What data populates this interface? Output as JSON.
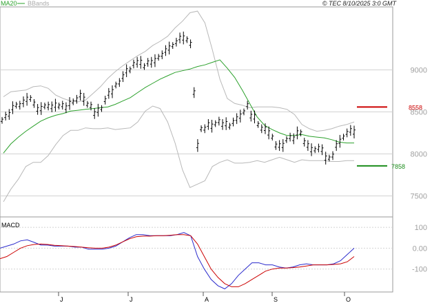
{
  "header": {
    "ma_label": "MA20",
    "bbands_label": "BBands",
    "timestamp": "© TEC 8/10/2025 3:0 GMT"
  },
  "macd_label": "MACD",
  "chart_data": [
    {
      "type": "candlestick",
      "title": "",
      "x_axis_labels": [
        "J",
        "J",
        "A",
        "S",
        "O"
      ],
      "y_ticks": [
        7500,
        8000,
        8500,
        9000
      ],
      "ylim": [
        7250,
        9750
      ],
      "grid": true,
      "colors": {
        "ma20": "#2aa02a",
        "bbands": "#b8b8b8",
        "price": "#000000"
      },
      "levels": [
        {
          "label": "8558",
          "value": 8558,
          "color": "#cc0000"
        },
        {
          "label": "7858",
          "value": 7858,
          "color": "#1a8c1a"
        }
      ],
      "series": [
        {
          "name": "Price",
          "values": [
            8400,
            8450,
            8470,
            8550,
            8580,
            8580,
            8620,
            8650,
            8660,
            8600,
            8530,
            8540,
            8570,
            8570,
            8560,
            8580,
            8570,
            8580,
            8550,
            8600,
            8620,
            8650,
            8700,
            8650,
            8590,
            8570,
            8480,
            8520,
            8540,
            8640,
            8720,
            8740,
            8820,
            8850,
            8920,
            8990,
            9000,
            9070,
            9090,
            9090,
            9040,
            9090,
            9090,
            9110,
            9150,
            9180,
            9230,
            9260,
            9290,
            9330,
            9380,
            9380,
            9360,
            9310,
            8730,
            8100,
            8300,
            8300,
            8350,
            8330,
            8360,
            8390,
            8350,
            8360,
            8330,
            8380,
            8420,
            8450,
            8500,
            8580,
            8450,
            8440,
            8350,
            8300,
            8300,
            8250,
            8200,
            8100,
            8100,
            8100,
            8170,
            8200,
            8180,
            8250,
            8250,
            8140,
            8100,
            8050,
            8050,
            8070,
            8050,
            7950,
            7950,
            7980,
            8100,
            8150,
            8200,
            8250,
            8280,
            8260
          ]
        },
        {
          "name": "MA20",
          "values": [
            8010,
            8120,
            8200,
            8270,
            8330,
            8390,
            8430,
            8460,
            8480,
            8510,
            8520,
            8530,
            8540,
            8550,
            8560,
            8590,
            8630,
            8670,
            8730,
            8790,
            8840,
            8890,
            8930,
            8970,
            8990,
            9010,
            9040,
            9060,
            9090,
            9120,
            9020,
            8910,
            8760,
            8600,
            8440,
            8340,
            8290,
            8250,
            8220,
            8220,
            8230,
            8210,
            8200,
            8190,
            8170,
            8140,
            8130,
            8130
          ]
        },
        {
          "name": "BBands upper",
          "values": [
            8680,
            8740,
            8750,
            8760,
            8800,
            8810,
            8780,
            8700,
            8660,
            8630,
            8620,
            8640,
            8720,
            8800,
            8900,
            8980,
            9050,
            9110,
            9170,
            9220,
            9290,
            9340,
            9400,
            9500,
            9580,
            9680,
            9700,
            9560,
            9240,
            8890,
            8660,
            8600,
            8580,
            8550,
            8560,
            8560,
            8560,
            8550,
            8530,
            8470,
            8350,
            8300,
            8270,
            8280,
            8300,
            8330,
            8350,
            8380
          ]
        },
        {
          "name": "BBands lower",
          "values": [
            7430,
            7580,
            7700,
            7850,
            7900,
            7900,
            7980,
            8110,
            8220,
            8280,
            8280,
            8310,
            8300,
            8300,
            8310,
            8290,
            8300,
            8310,
            8380,
            8510,
            8570,
            8540,
            8380,
            8130,
            7810,
            7600,
            7640,
            7680,
            7850,
            7900,
            7930,
            7890,
            7890,
            7900,
            7920,
            7900,
            7930,
            7960,
            7930,
            7900,
            7930,
            7920,
            7920,
            7920,
            7910,
            7910,
            7920,
            7920
          ]
        }
      ]
    },
    {
      "type": "line",
      "title": "MACD",
      "y_ticks": [
        100,
        0,
        -100
      ],
      "y_tick_labels": [
        "100",
        "0.00",
        "-100"
      ],
      "ylim": [
        -210,
        150
      ],
      "grid": true,
      "series": [
        {
          "name": "MACD",
          "color": "#2a2acc",
          "values": [
            0,
            10,
            20,
            35,
            40,
            28,
            15,
            15,
            10,
            10,
            10,
            5,
            5,
            -5,
            -5,
            -5,
            0,
            10,
            30,
            50,
            65,
            65,
            60,
            60,
            60,
            60,
            65,
            75,
            60,
            -40,
            -100,
            -150,
            -180,
            -195,
            -170,
            -130,
            -100,
            -70,
            -70,
            -80,
            -80,
            -90,
            -95,
            -90,
            -80,
            -75,
            -80,
            -80,
            -80,
            -75,
            -60,
            -30,
            0
          ]
        },
        {
          "name": "Signal",
          "color": "#cc0000",
          "values": [
            -50,
            -40,
            -20,
            0,
            12,
            18,
            20,
            18,
            14,
            12,
            10,
            8,
            5,
            2,
            0,
            0,
            5,
            15,
            30,
            45,
            55,
            58,
            58,
            60,
            60,
            62,
            65,
            65,
            60,
            20,
            -40,
            -100,
            -140,
            -170,
            -185,
            -185,
            -170,
            -150,
            -130,
            -110,
            -100,
            -95,
            -95,
            -93,
            -90,
            -85,
            -80,
            -80,
            -80,
            -78,
            -75,
            -65,
            -40
          ]
        }
      ]
    }
  ]
}
